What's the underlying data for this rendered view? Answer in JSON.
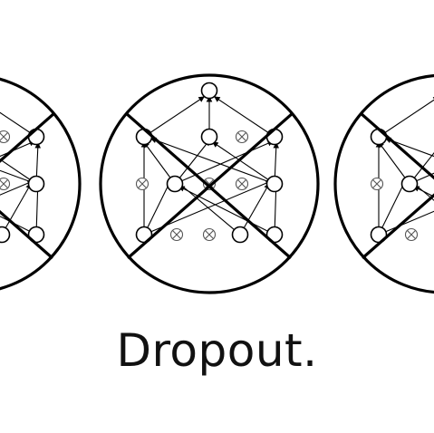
{
  "caption": "Dropout.",
  "colors": {
    "ink": "#000000",
    "background": "#ffffff",
    "dropped_unit": "#555555"
  },
  "diagrams": [
    {
      "name": "dropout-diagram-left",
      "role": "crossed-out network sample"
    },
    {
      "name": "dropout-diagram-center",
      "role": "crossed-out network sample"
    },
    {
      "name": "dropout-diagram-right",
      "role": "crossed-out network sample"
    }
  ]
}
